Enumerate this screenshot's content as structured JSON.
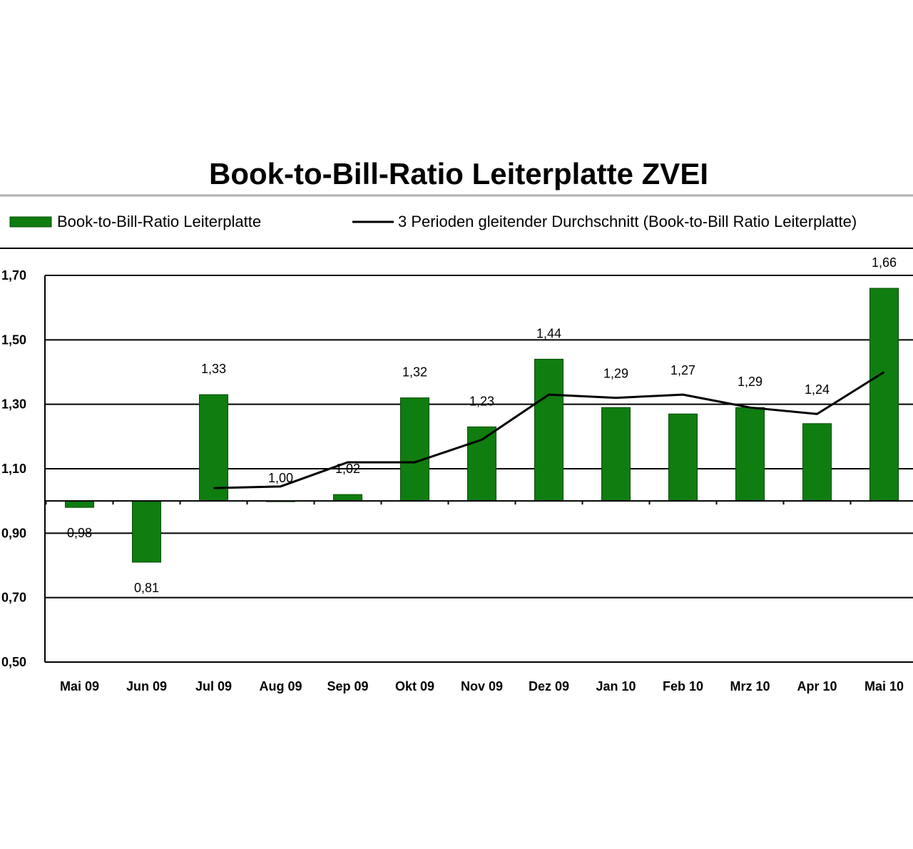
{
  "chart_data": {
    "type": "bar",
    "title": "Book-to-Bill-Ratio Leiterplatte ZVEI",
    "categories": [
      "Mai 09",
      "Jun 09",
      "Jul 09",
      "Aug 09",
      "Sep 09",
      "Okt 09",
      "Nov 09",
      "Dez 09",
      "Jan 10",
      "Feb 10",
      "Mrz 10",
      "Apr 10",
      "Mai 10"
    ],
    "series": [
      {
        "name": "Book-to-Bill-Ratio Leiterplatte",
        "type": "bar",
        "color": "#0f7d0f",
        "values": [
          0.98,
          0.81,
          1.33,
          1.0,
          1.02,
          1.32,
          1.23,
          1.44,
          1.29,
          1.27,
          1.29,
          1.24,
          1.66
        ],
        "labels": [
          "0,98",
          "0,81",
          "1,33",
          "1,00",
          "1,02",
          "1,32",
          "1,23",
          "1,44",
          "1,29",
          "1,27",
          "1,29",
          "1,24",
          "1,66"
        ]
      },
      {
        "name": "3 Perioden gleitender Durchschnitt (Book-to-Bill Ratio Leiterplatte)",
        "type": "line",
        "color": "#000000",
        "values": [
          null,
          null,
          1.04,
          1.045,
          1.12,
          1.12,
          1.19,
          1.33,
          1.32,
          1.33,
          1.29,
          1.27,
          1.4
        ]
      }
    ],
    "ylim": [
      0.5,
      1.7
    ],
    "yticks": [
      0.5,
      0.7,
      0.9,
      1.1,
      1.3,
      1.5,
      1.7
    ],
    "ytick_labels": [
      "0,50",
      "0,70",
      "0,90",
      "1,10",
      "1,30",
      "1,50",
      "1,70"
    ],
    "baseline": 1.0,
    "grid": true,
    "legend_position": "top",
    "xlabel": "",
    "ylabel": ""
  }
}
